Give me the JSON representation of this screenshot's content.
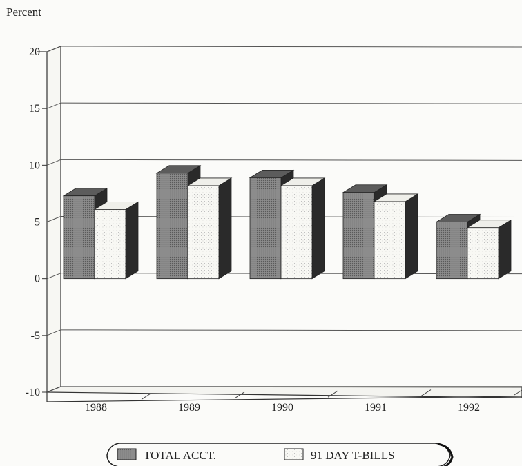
{
  "chart_data": {
    "type": "bar",
    "ylabel": "Percent",
    "categories": [
      "1988",
      "1989",
      "1990",
      "1991",
      "1992"
    ],
    "series": [
      {
        "name": "TOTAL ACCT.",
        "values": [
          7.3,
          9.3,
          8.9,
          7.6,
          5.0
        ],
        "color": "#7d7d7d"
      },
      {
        "name": "91 DAY T-BILLS",
        "values": [
          6.1,
          8.2,
          8.2,
          6.8,
          4.5
        ],
        "color": "#f6f6f2"
      }
    ],
    "ylim": [
      -10,
      20
    ],
    "yticks": [
      "20",
      "15",
      "10",
      "5",
      "0",
      "-5",
      "-10"
    ],
    "ytick_values": [
      20,
      15,
      10,
      5,
      0,
      -5,
      -10
    ],
    "grid": true,
    "legend": "bottom-center"
  }
}
